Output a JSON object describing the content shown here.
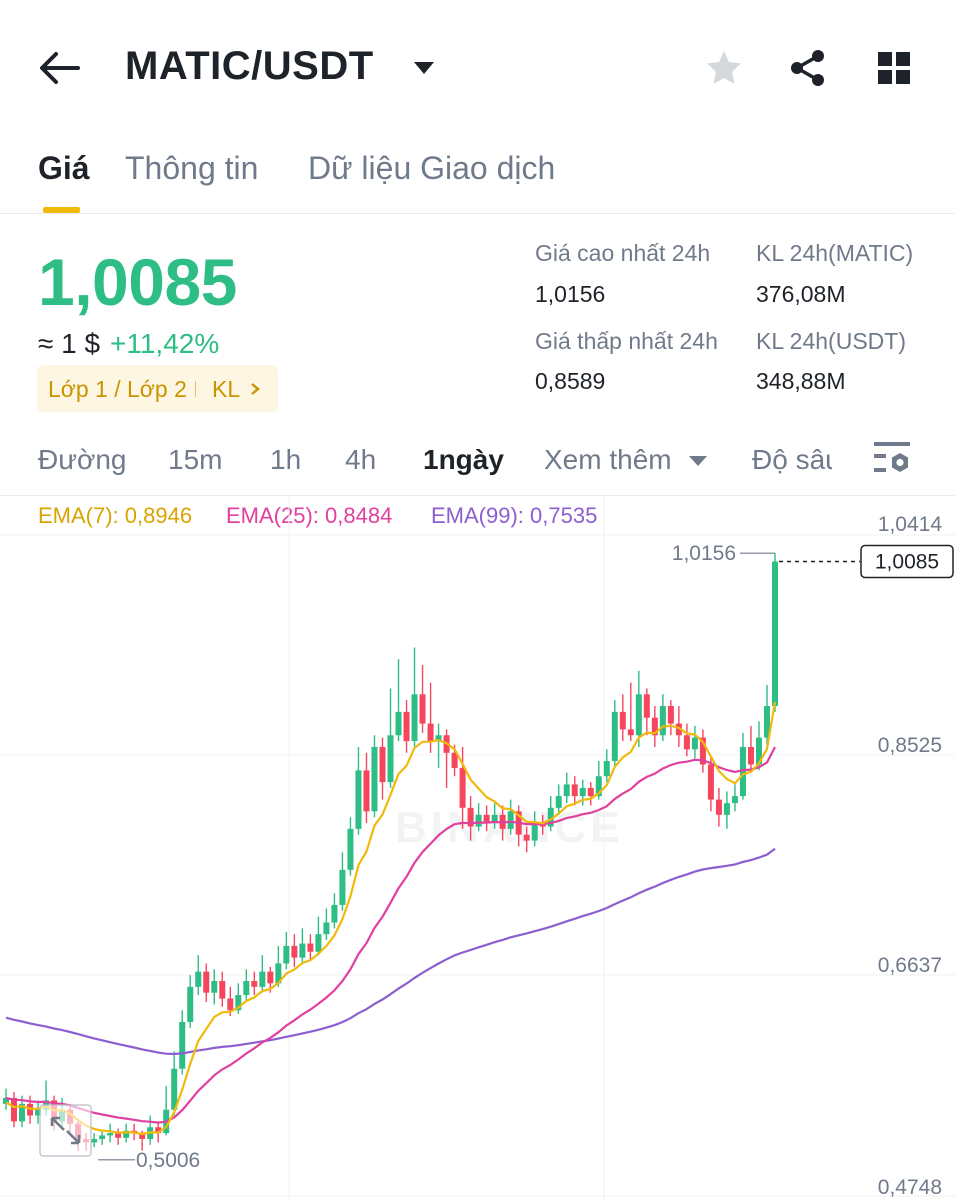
{
  "header": {
    "pair": "MATIC/USDT",
    "icons": [
      "back-arrow-icon",
      "caret-down-icon",
      "star-icon",
      "share-icon",
      "grid-icon"
    ]
  },
  "tabs": [
    {
      "label": "Giá",
      "active": true
    },
    {
      "label": "Thông tin",
      "active": false
    },
    {
      "label": "Dữ liệu Giao dịch",
      "active": false
    }
  ],
  "price": {
    "last": "1,0085",
    "usd_approx": "≈ 1 $",
    "change": "+11,42%",
    "tag": "Lớp 1 / Lớp 2",
    "tag_kl": "KL"
  },
  "stats": {
    "high_label": "Giá cao nhất 24h",
    "high_value": "1,0156",
    "low_label": "Giá thấp nhất 24h",
    "low_value": "0,8589",
    "vol_base_label": "KL 24h(MATIC)",
    "vol_base_value": "376,08M",
    "vol_quote_label": "KL 24h(USDT)",
    "vol_quote_value": "348,88M"
  },
  "intervals": [
    {
      "label": "Đường",
      "active": false
    },
    {
      "label": "15m",
      "active": false
    },
    {
      "label": "1h",
      "active": false
    },
    {
      "label": "4h",
      "active": false
    },
    {
      "label": "1ngày",
      "active": true
    },
    {
      "label": "Xem thêm",
      "active": false
    },
    {
      "label": "Độ sâu",
      "active": false
    }
  ],
  "ema_legend": {
    "ema7": "EMA(7): 0,8946",
    "ema25": "EMA(25): 0,8484",
    "ema99": "EMA(99): 0,7535"
  },
  "colors": {
    "up": "#2ebd85",
    "down": "#f6465d",
    "ema7": "#f0b90b",
    "ema25": "#e040a0",
    "ema99": "#8c5fd0",
    "accent": "#f0b90b"
  },
  "chart_data": {
    "type": "candlestick",
    "interval": "1ngày",
    "y_ticks": [
      "1,0414",
      "0,8525",
      "0,6637",
      "0,4748"
    ],
    "ylim": [
      0.4748,
      1.0414
    ],
    "y_tick_values": [
      1.0414,
      0.8525,
      0.6637,
      0.4748
    ],
    "last_price_label": "1,0085",
    "last_price": 1.0085,
    "high_marker_label": "1,0156",
    "high_marker": 1.0156,
    "low_marker_label": "0,5006",
    "low_marker": 0.5006,
    "watermark": "BINANCE",
    "candles": [
      [
        0.545,
        0.55,
        0.558,
        0.54
      ],
      [
        0.55,
        0.53,
        0.555,
        0.525
      ],
      [
        0.53,
        0.545,
        0.552,
        0.525
      ],
      [
        0.545,
        0.535,
        0.552,
        0.528
      ],
      [
        0.535,
        0.54,
        0.548,
        0.528
      ],
      [
        0.54,
        0.548,
        0.565,
        0.535
      ],
      [
        0.548,
        0.53,
        0.552,
        0.522
      ],
      [
        0.53,
        0.54,
        0.55,
        0.525
      ],
      [
        0.54,
        0.528,
        0.545,
        0.52
      ],
      [
        0.528,
        0.515,
        0.532,
        0.505
      ],
      [
        0.515,
        0.512,
        0.52,
        0.505
      ],
      [
        0.512,
        0.515,
        0.52,
        0.508
      ],
      [
        0.515,
        0.518,
        0.522,
        0.51
      ],
      [
        0.518,
        0.52,
        0.528,
        0.512
      ],
      [
        0.52,
        0.516,
        0.524,
        0.51
      ],
      [
        0.516,
        0.522,
        0.528,
        0.512
      ],
      [
        0.522,
        0.52,
        0.528,
        0.514
      ],
      [
        0.52,
        0.515,
        0.522,
        0.505
      ],
      [
        0.515,
        0.525,
        0.535,
        0.51
      ],
      [
        0.525,
        0.52,
        0.53,
        0.512
      ],
      [
        0.52,
        0.54,
        0.56,
        0.518
      ],
      [
        0.54,
        0.575,
        0.59,
        0.535
      ],
      [
        0.575,
        0.615,
        0.625,
        0.57
      ],
      [
        0.615,
        0.645,
        0.655,
        0.61
      ],
      [
        0.645,
        0.658,
        0.672,
        0.638
      ],
      [
        0.658,
        0.64,
        0.665,
        0.632
      ],
      [
        0.64,
        0.65,
        0.66,
        0.63
      ],
      [
        0.65,
        0.635,
        0.658,
        0.628
      ],
      [
        0.635,
        0.625,
        0.645,
        0.62
      ],
      [
        0.625,
        0.638,
        0.648,
        0.622
      ],
      [
        0.638,
        0.65,
        0.66,
        0.632
      ],
      [
        0.65,
        0.645,
        0.658,
        0.638
      ],
      [
        0.645,
        0.658,
        0.672,
        0.64
      ],
      [
        0.658,
        0.648,
        0.662,
        0.64
      ],
      [
        0.648,
        0.665,
        0.68,
        0.645
      ],
      [
        0.665,
        0.68,
        0.692,
        0.66
      ],
      [
        0.68,
        0.67,
        0.69,
        0.662
      ],
      [
        0.67,
        0.682,
        0.695,
        0.665
      ],
      [
        0.682,
        0.675,
        0.69,
        0.668
      ],
      [
        0.675,
        0.69,
        0.705,
        0.672
      ],
      [
        0.69,
        0.7,
        0.712,
        0.685
      ],
      [
        0.7,
        0.715,
        0.725,
        0.695
      ],
      [
        0.715,
        0.745,
        0.76,
        0.71
      ],
      [
        0.745,
        0.78,
        0.79,
        0.74
      ],
      [
        0.78,
        0.83,
        0.85,
        0.775
      ],
      [
        0.83,
        0.795,
        0.845,
        0.785
      ],
      [
        0.795,
        0.85,
        0.86,
        0.79
      ],
      [
        0.85,
        0.82,
        0.858,
        0.805
      ],
      [
        0.82,
        0.86,
        0.9,
        0.815
      ],
      [
        0.86,
        0.88,
        0.925,
        0.855
      ],
      [
        0.88,
        0.855,
        0.89,
        0.845
      ],
      [
        0.855,
        0.895,
        0.935,
        0.85
      ],
      [
        0.895,
        0.87,
        0.92,
        0.862
      ],
      [
        0.87,
        0.855,
        0.905,
        0.845
      ],
      [
        0.855,
        0.86,
        0.87,
        0.832
      ],
      [
        0.86,
        0.845,
        0.865,
        0.815
      ],
      [
        0.845,
        0.832,
        0.852,
        0.825
      ],
      [
        0.832,
        0.798,
        0.85,
        0.78
      ],
      [
        0.798,
        0.782,
        0.808,
        0.77
      ],
      [
        0.782,
        0.792,
        0.802,
        0.778
      ],
      [
        0.792,
        0.785,
        0.8,
        0.778
      ],
      [
        0.785,
        0.792,
        0.802,
        0.78
      ],
      [
        0.792,
        0.78,
        0.8,
        0.77
      ],
      [
        0.78,
        0.795,
        0.805,
        0.775
      ],
      [
        0.795,
        0.775,
        0.8,
        0.765
      ],
      [
        0.775,
        0.77,
        0.782,
        0.76
      ],
      [
        0.77,
        0.785,
        0.795,
        0.765
      ],
      [
        0.785,
        0.782,
        0.792,
        0.775
      ],
      [
        0.782,
        0.798,
        0.808,
        0.778
      ],
      [
        0.798,
        0.808,
        0.818,
        0.792
      ],
      [
        0.808,
        0.818,
        0.828,
        0.802
      ],
      [
        0.818,
        0.808,
        0.825,
        0.8
      ],
      [
        0.808,
        0.815,
        0.822,
        0.8
      ],
      [
        0.815,
        0.808,
        0.82,
        0.8
      ],
      [
        0.808,
        0.825,
        0.838,
        0.805
      ],
      [
        0.825,
        0.838,
        0.848,
        0.82
      ],
      [
        0.838,
        0.88,
        0.89,
        0.832
      ],
      [
        0.88,
        0.865,
        0.895,
        0.855
      ],
      [
        0.865,
        0.86,
        0.905,
        0.855
      ],
      [
        0.86,
        0.895,
        0.915,
        0.85
      ],
      [
        0.895,
        0.875,
        0.9,
        0.86
      ],
      [
        0.875,
        0.86,
        0.885,
        0.85
      ],
      [
        0.86,
        0.885,
        0.895,
        0.855
      ],
      [
        0.885,
        0.87,
        0.89,
        0.86
      ],
      [
        0.87,
        0.86,
        0.885,
        0.85
      ],
      [
        0.86,
        0.848,
        0.87,
        0.842
      ],
      [
        0.848,
        0.858,
        0.868,
        0.84
      ],
      [
        0.858,
        0.835,
        0.865,
        0.828
      ],
      [
        0.835,
        0.805,
        0.842,
        0.795
      ],
      [
        0.805,
        0.792,
        0.815,
        0.782
      ],
      [
        0.792,
        0.802,
        0.812,
        0.78
      ],
      [
        0.802,
        0.808,
        0.818,
        0.795
      ],
      [
        0.808,
        0.85,
        0.862,
        0.805
      ],
      [
        0.85,
        0.835,
        0.868,
        0.83
      ],
      [
        0.835,
        0.858,
        0.872,
        0.83
      ],
      [
        0.858,
        0.885,
        0.903,
        0.85
      ],
      [
        0.885,
        1.0085,
        1.0156,
        0.88
      ]
    ]
  }
}
